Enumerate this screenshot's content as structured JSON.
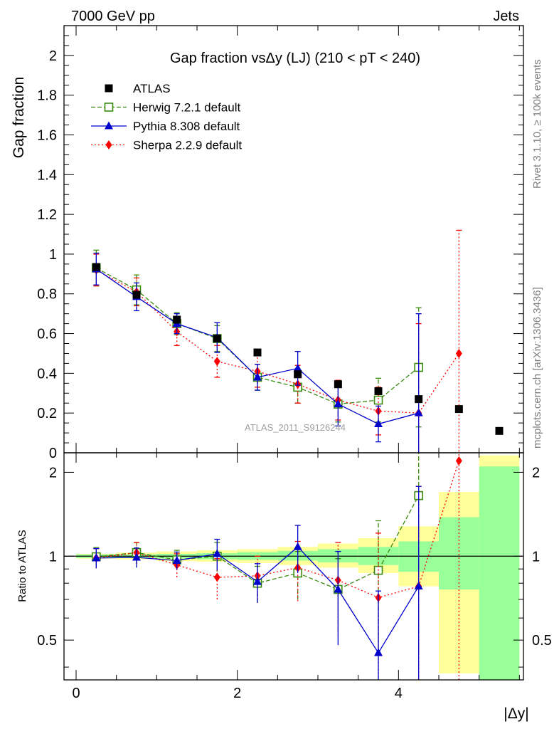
{
  "header": {
    "left": "7000 GeV pp",
    "right": "Jets"
  },
  "side_labels": {
    "rivet": "Rivet 3.1.10, ≥ 100k events",
    "mcplots": "mcplots.cern.ch [arXiv:1306.3436]"
  },
  "chart_data": [
    {
      "type": "scatter",
      "title": "Gap fraction vsΔy (LJ) (210 < pT < 240)",
      "ylabel": "Gap fraction",
      "xlabel": "",
      "xlim": [
        -0.15,
        5.55
      ],
      "ylim": [
        0,
        2.15
      ],
      "y_ticks": [
        "0",
        "0.2",
        "0.4",
        "0.6",
        "0.8",
        "1",
        "1.2",
        "1.4",
        "1.6",
        "1.8",
        "2"
      ],
      "watermark": "ATLAS_2011_S9126244",
      "legend_position": "top-left",
      "series": [
        {
          "name": "ATLAS",
          "color": "#000000",
          "marker": "square-filled",
          "x": [
            0.25,
            0.75,
            1.25,
            1.75,
            2.25,
            2.75,
            3.25,
            3.75,
            4.25,
            4.75,
            5.25
          ],
          "y": [
            0.935,
            0.795,
            0.67,
            0.575,
            0.505,
            0.395,
            0.345,
            0.31,
            0.27,
            0.22,
            0.11
          ]
        },
        {
          "name": "Herwig 7.2.1 default",
          "color": "#3a8a10",
          "marker": "square-open",
          "line": "dashed",
          "x": [
            0.25,
            0.75,
            1.25,
            1.75,
            2.25,
            2.75,
            3.25,
            3.75,
            4.25
          ],
          "y": [
            0.93,
            0.82,
            0.65,
            0.575,
            0.38,
            0.33,
            0.245,
            0.265,
            0.43
          ],
          "err": [
            0.09,
            0.075,
            0.055,
            0.065,
            0.065,
            0.08,
            0.09,
            0.11,
            0.3
          ]
        },
        {
          "name": "Pythia 8.308 default",
          "color": "#0000cc",
          "marker": "triangle-filled",
          "line": "solid",
          "x": [
            0.25,
            0.75,
            1.25,
            1.75,
            2.25,
            2.75,
            3.25,
            3.75,
            4.25
          ],
          "y": [
            0.925,
            0.785,
            0.65,
            0.58,
            0.38,
            0.425,
            0.245,
            0.145,
            0.2
          ],
          "err": [
            0.08,
            0.07,
            0.05,
            0.075,
            0.065,
            0.085,
            0.11,
            0.09,
            0.5
          ]
        },
        {
          "name": "Sherpa 2.2.9 default",
          "color": "#ff0000",
          "marker": "diamond-filled",
          "line": "dotted",
          "x": [
            0.25,
            0.75,
            1.25,
            1.75,
            2.25,
            2.75,
            3.25,
            3.75,
            4.25,
            4.75
          ],
          "y": [
            0.92,
            0.81,
            0.61,
            0.46,
            0.41,
            0.345,
            0.265,
            0.21,
            0.2,
            0.5
          ],
          "err": [
            0.08,
            0.07,
            0.07,
            0.08,
            0.08,
            0.095,
            0.1,
            0.12,
            0.45,
            0.62
          ]
        }
      ]
    },
    {
      "type": "scatter",
      "title": "",
      "ylabel": "Ratio to ATLAS",
      "xlabel": "|Δy|",
      "xlim": [
        -0.15,
        5.55
      ],
      "ylim": [
        0.36,
        2.35
      ],
      "log_y": true,
      "x_ticks": [
        "0",
        "2",
        "4"
      ],
      "y_ticks": [
        "0.5",
        "1",
        "2"
      ],
      "reference_line": 1,
      "uncertainty_bands": {
        "x_edges": [
          0,
          0.5,
          1.0,
          1.5,
          2.0,
          2.5,
          3.0,
          3.5,
          4.0,
          4.5,
          5.0,
          5.5
        ],
        "stat_low": [
          0.985,
          0.985,
          0.98,
          0.975,
          0.97,
          0.965,
          0.95,
          0.93,
          0.88,
          0.76,
          0.36
        ],
        "stat_high": [
          1.015,
          1.015,
          1.02,
          1.025,
          1.035,
          1.045,
          1.06,
          1.08,
          1.13,
          1.38,
          2.1
        ],
        "total_low": [
          0.98,
          0.975,
          0.96,
          0.955,
          0.945,
          0.93,
          0.91,
          0.87,
          0.78,
          0.38,
          0.36
        ],
        "total_high": [
          1.02,
          1.03,
          1.04,
          1.05,
          1.06,
          1.08,
          1.11,
          1.16,
          1.28,
          1.7,
          2.3
        ],
        "stat_color": "#99ff99",
        "total_color": "#ffff99"
      },
      "series": [
        {
          "name": "Herwig 7.2.1 default",
          "color": "#3a8a10",
          "x": [
            0.25,
            0.75,
            1.25,
            1.75,
            2.25,
            2.75,
            3.25,
            3.75,
            4.25
          ],
          "y": [
            0.995,
            1.03,
            0.97,
            1.0,
            0.8,
            0.87,
            0.76,
            0.89,
            1.65
          ],
          "err": [
            0.08,
            0.09,
            0.08,
            0.12,
            0.12,
            0.17,
            0.22,
            0.45,
            1.2
          ]
        },
        {
          "name": "Pythia 8.308 default",
          "color": "#0000cc",
          "x": [
            0.25,
            0.75,
            1.25,
            1.75,
            2.25,
            2.75,
            3.25,
            3.75,
            4.25
          ],
          "y": [
            0.985,
            0.99,
            0.965,
            1.02,
            0.81,
            1.08,
            0.76,
            0.45,
            0.78
          ],
          "err": [
            0.08,
            0.08,
            0.07,
            0.13,
            0.13,
            0.21,
            0.28,
            0.3,
            1.0
          ]
        },
        {
          "name": "Sherpa 2.2.9 default",
          "color": "#ff0000",
          "x": [
            0.25,
            0.75,
            1.25,
            1.75,
            2.25,
            2.75,
            3.25,
            3.75,
            4.25,
            4.75
          ],
          "y": [
            0.985,
            1.03,
            0.93,
            0.84,
            0.85,
            0.91,
            0.82,
            0.71,
            0.78,
            2.2
          ],
          "err": [
            0.08,
            0.09,
            0.09,
            0.14,
            0.15,
            0.22,
            0.3,
            0.5,
            1.0,
            2.2
          ]
        }
      ]
    }
  ]
}
